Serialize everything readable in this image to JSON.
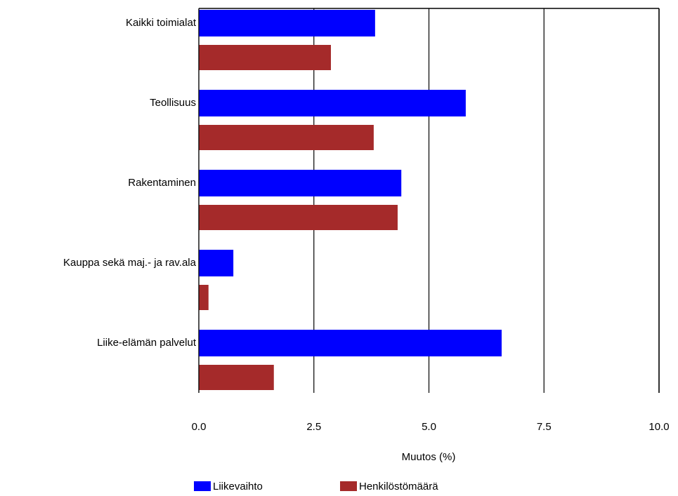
{
  "chart_data": {
    "type": "bar",
    "orientation": "horizontal",
    "categories": [
      "Kaikki toimialat",
      "Teollisuus",
      "Rakentaminen",
      "Kauppa sekä maj.- ja rav.ala",
      "Liike-elämän palvelut"
    ],
    "series": [
      {
        "name": "Liikevaihto",
        "color": "#0000ff",
        "values": [
          3.83,
          5.8,
          4.4,
          0.75,
          6.58
        ]
      },
      {
        "name": "Henkilöstömäärä",
        "color": "#a52a2a",
        "values": [
          2.87,
          3.8,
          4.32,
          0.21,
          1.63
        ]
      }
    ],
    "x_label": "Muutos (%)",
    "xlim": [
      0,
      10
    ],
    "xticks": [
      {
        "value": 0,
        "label": "0.0"
      },
      2.5,
      {
        "value": 5,
        "label": "5.0"
      },
      7.5,
      {
        "value": 10,
        "label": "10.0"
      }
    ],
    "grid": true,
    "legend": "bottom"
  }
}
